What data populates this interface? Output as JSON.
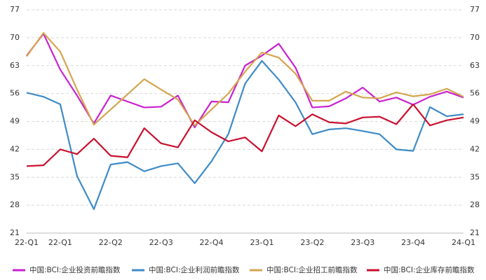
{
  "chart_data": {
    "type": "line",
    "categories": [
      "22-Q1",
      null,
      "22-Q1",
      null,
      null,
      "22-Q2",
      null,
      null,
      "22-Q3",
      null,
      null,
      "22-Q4",
      null,
      null,
      "23-Q1",
      null,
      null,
      "23-Q2",
      null,
      null,
      "23-Q3",
      null,
      null,
      "23-Q4",
      null,
      null,
      "24-Q1"
    ],
    "series": [
      {
        "name": "中国:BCI:企业投资前瞻指数",
        "color": "#c822cf",
        "values": [
          65.5,
          71,
          62,
          55.5,
          48.5,
          55.5,
          54,
          52.5,
          52.7,
          55.5,
          47.5,
          54,
          53.8,
          63,
          65.5,
          68.5,
          62.5,
          52.5,
          52.8,
          54.8,
          57.5,
          54,
          55,
          53.2,
          55.2,
          56.5,
          55
        ]
      },
      {
        "name": "中国:BCI:企业利润前瞻指数",
        "color": "#3e8bc6",
        "values": [
          56.2,
          55.2,
          53.3,
          35.3,
          27,
          38.2,
          38.8,
          36.5,
          37.8,
          38.5,
          33.5,
          39,
          45.8,
          58.5,
          64.2,
          59.5,
          53.8,
          45.8,
          47,
          47.3,
          46.6,
          45.8,
          42,
          41.6,
          52.6,
          50.3,
          50.8
        ]
      },
      {
        "name": "中国:BCI:企业招工前瞻指数",
        "color": "#d4a64e",
        "values": [
          65.3,
          71.2,
          66.5,
          57,
          48.2,
          52,
          55.8,
          59.6,
          57,
          54.5,
          48,
          52,
          56,
          61.5,
          66.3,
          65,
          61,
          54.2,
          54.2,
          56.5,
          55,
          54.8,
          56.3,
          55.3,
          55.8,
          57.2,
          55.2
        ]
      },
      {
        "name": "中国:BCI:企业库存前瞻指数",
        "color": "#c8102e",
        "values": [
          37.8,
          38,
          42,
          40.8,
          44.7,
          40.4,
          40,
          47.3,
          43.5,
          42.5,
          49.3,
          46.3,
          44,
          45,
          41.5,
          50.5,
          47.8,
          50.8,
          48.8,
          48.5,
          50,
          50.2,
          48.3,
          53.3,
          48,
          49.3,
          50
        ]
      }
    ],
    "ylim": [
      21,
      77
    ],
    "yticks": [
      21,
      28,
      35,
      42,
      49,
      56,
      63,
      70,
      77
    ],
    "y2lim": [
      21,
      77
    ],
    "y2ticks": [
      21,
      28,
      35,
      42,
      49,
      56,
      63,
      70,
      77
    ],
    "grid": true
  }
}
